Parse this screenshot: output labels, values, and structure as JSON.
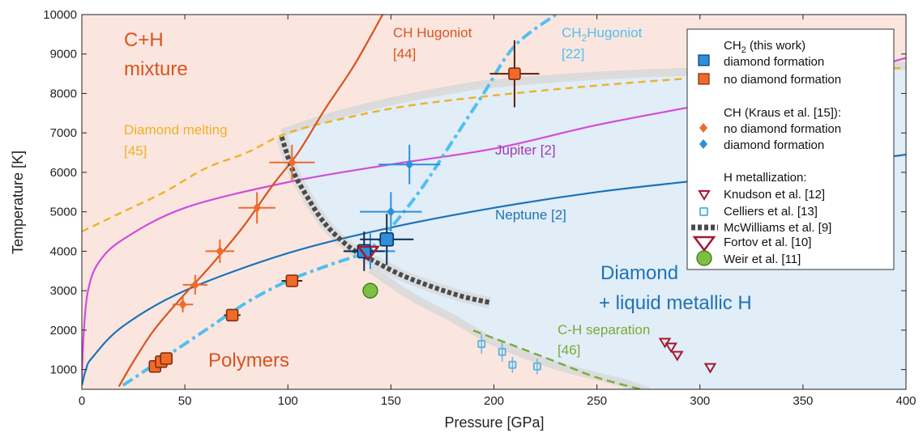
{
  "chart_data": {
    "type": "scatter",
    "xlabel": "Pressure [GPa]",
    "ylabel": "Temperature [K]",
    "xlim": [
      0,
      400
    ],
    "ylim": [
      500,
      10000
    ],
    "x_ticks": [
      "0",
      "50",
      "100",
      "150",
      "200",
      "250",
      "300",
      "350",
      "400"
    ],
    "y_ticks": [
      "1000",
      "2000",
      "3000",
      "4000",
      "5000",
      "6000",
      "7000",
      "8000",
      "9000",
      "10000"
    ],
    "region_labels": {
      "ch_mixture_1": "C+H",
      "ch_mixture_2": "mixture",
      "polymers": "Polymers",
      "diamond_1": "Diamond",
      "diamond_2": "+ liquid metallic H"
    },
    "curve_labels": {
      "ch_hugoniot_1": "CH Hugoniot",
      "ch_hugoniot_2": "[44]",
      "ch2_hugoniot_main": "CH",
      "ch2_hugoniot_sub": "2",
      "ch2_hugoniot_rest": "Hugoniot",
      "ch2_hugoniot_ref": "[22]",
      "diamond_melting_1": "Diamond melting",
      "diamond_melting_2": "[45]",
      "jupiter": "Jupiter [2]",
      "neptune": "Neptune [2]",
      "separation_1": "C-H separation",
      "separation_2": "[46]"
    },
    "legend": {
      "header_main": "CH",
      "header_sub": "2",
      "header_rest": " (this work)",
      "diamond_formation": "diamond formation",
      "no_diamond_formation": "no diamond formation",
      "kraus_header": "CH (Kraus et al. [15]):",
      "kraus_no": "no diamond formation",
      "kraus_yes": "diamond formation",
      "h_metal_header": "H metallization:",
      "knudson": "Knudson et al. [12]",
      "celliers": "Celliers et al. [13]",
      "mcwilliams": "McWilliams et al. [9]",
      "fortov": "Fortov et al. [10]",
      "weir": "Weir et al. [11]"
    },
    "colors": {
      "ch_region": "#fbe6df",
      "diamond_region": "#e1edf7",
      "ch_hugoniot": "#d9531e",
      "ch2_hugoniot": "#4fc0f0",
      "diamond_melting": "#efb125",
      "jupiter": "#d14dd9",
      "neptune": "#1c73b9",
      "separation": "#7aab35",
      "mcwilliams": "#4a4a4a",
      "knudson": "#a3192e",
      "celliers": "#5fb6e2",
      "weir": "#7bc043",
      "orange_marker": "#f06a2a",
      "blue_marker": "#2c8fde"
    },
    "series": {
      "ch_hugoniot": [
        [
          18,
          570
        ],
        [
          25,
          1200
        ],
        [
          35,
          2000
        ],
        [
          48,
          2800
        ],
        [
          62,
          3600
        ],
        [
          78,
          4600
        ],
        [
          93,
          5700
        ],
        [
          105,
          6500
        ],
        [
          118,
          7600
        ],
        [
          132,
          8700
        ],
        [
          146,
          10000
        ]
      ],
      "ch2_hugoniot": [
        [
          20,
          600
        ],
        [
          40,
          1300
        ],
        [
          60,
          2000
        ],
        [
          80,
          2700
        ],
        [
          100,
          3250
        ],
        [
          120,
          3650
        ],
        [
          138,
          4000
        ],
        [
          150,
          4600
        ],
        [
          165,
          5600
        ],
        [
          180,
          6800
        ],
        [
          195,
          8000
        ],
        [
          210,
          9200
        ],
        [
          230,
          10000
        ]
      ],
      "diamond_melting": [
        [
          0,
          4500
        ],
        [
          20,
          5000
        ],
        [
          40,
          5500
        ],
        [
          60,
          6100
        ],
        [
          80,
          6500
        ],
        [
          100,
          7000
        ],
        [
          130,
          7400
        ],
        [
          160,
          7700
        ],
        [
          200,
          7950
        ],
        [
          250,
          8200
        ],
        [
          300,
          8400
        ],
        [
          350,
          8550
        ],
        [
          400,
          8650
        ]
      ],
      "jupiter": [
        [
          0,
          800
        ],
        [
          1,
          2000
        ],
        [
          3,
          3000
        ],
        [
          8,
          3700
        ],
        [
          20,
          4300
        ],
        [
          50,
          5100
        ],
        [
          100,
          5750
        ],
        [
          150,
          6200
        ],
        [
          200,
          6600
        ],
        [
          250,
          7200
        ],
        [
          300,
          7700
        ],
        [
          350,
          8200
        ],
        [
          400,
          8900
        ]
      ],
      "neptune": [
        [
          0,
          600
        ],
        [
          2,
          1000
        ],
        [
          5,
          1300
        ],
        [
          20,
          2100
        ],
        [
          50,
          3000
        ],
        [
          100,
          3950
        ],
        [
          150,
          4600
        ],
        [
          200,
          5100
        ],
        [
          250,
          5500
        ],
        [
          300,
          5800
        ],
        [
          350,
          6100
        ],
        [
          400,
          6450
        ]
      ],
      "separation": [
        [
          190,
          1990
        ],
        [
          210,
          1600
        ],
        [
          230,
          1200
        ],
        [
          250,
          800
        ],
        [
          275,
          450
        ]
      ],
      "mcwilliams": [
        [
          97,
          6900
        ],
        [
          102,
          6100
        ],
        [
          108,
          5500
        ],
        [
          118,
          4700
        ],
        [
          130,
          4100
        ],
        [
          140,
          3800
        ],
        [
          155,
          3400
        ],
        [
          170,
          3100
        ],
        [
          185,
          2850
        ],
        [
          198,
          2700
        ]
      ],
      "diamond_boundary_upper": [
        [
          97,
          7000
        ],
        [
          120,
          7400
        ],
        [
          150,
          7800
        ],
        [
          180,
          8100
        ],
        [
          200,
          8250
        ],
        [
          250,
          8450
        ],
        [
          300,
          8560
        ],
        [
          350,
          8620
        ],
        [
          400,
          8700
        ]
      ],
      "diamond_boundary_lower": [
        [
          140,
          3550
        ],
        [
          160,
          2850
        ],
        [
          180,
          2300
        ],
        [
          200,
          1700
        ],
        [
          230,
          1100
        ],
        [
          260,
          700
        ],
        [
          275,
          450
        ]
      ]
    },
    "ch2_diamond": [
      {
        "x": 137,
        "y": 4000,
        "xerr": 10,
        "yerr": 500
      },
      {
        "x": 148,
        "y": 4300,
        "xerr": 13,
        "yerr": 650
      }
    ],
    "ch2_no_diamond": [
      {
        "x": 35.5,
        "y": 1080,
        "xerr": 2,
        "yerr": 120
      },
      {
        "x": 38.5,
        "y": 1200,
        "xerr": 2,
        "yerr": 120
      },
      {
        "x": 41,
        "y": 1280,
        "xerr": 2,
        "yerr": 120
      },
      {
        "x": 73,
        "y": 2380,
        "xerr": 4,
        "yerr": 150
      },
      {
        "x": 102,
        "y": 3250,
        "xerr": 5,
        "yerr": 150
      },
      {
        "x": 210,
        "y": 8500,
        "xerr": 12,
        "yerr": 850
      }
    ],
    "kraus_no_diamond": [
      {
        "x": 49,
        "y": 2650,
        "xerr": 5,
        "yerr": 200
      },
      {
        "x": 55,
        "y": 3150,
        "xerr": 6,
        "yerr": 250
      },
      {
        "x": 67,
        "y": 4000,
        "xerr": 7,
        "yerr": 300
      },
      {
        "x": 85,
        "y": 5100,
        "xerr": 9,
        "yerr": 400
      },
      {
        "x": 102,
        "y": 6250,
        "xerr": 11,
        "yerr": 450
      }
    ],
    "kraus_diamond": [
      {
        "x": 140,
        "y": 4000,
        "xerr": 12,
        "yerr": 450
      },
      {
        "x": 150,
        "y": 5000,
        "xerr": 15,
        "yerr": 500
      },
      {
        "x": 159,
        "y": 6200,
        "xerr": 15,
        "yerr": 500
      }
    ],
    "knudson": [
      [
        283,
        1680
      ],
      [
        286,
        1560
      ],
      [
        289,
        1350
      ],
      [
        305,
        1040
      ]
    ],
    "celliers": [
      {
        "x": 194,
        "y": 1650,
        "yerr": 250
      },
      {
        "x": 204,
        "y": 1450,
        "yerr": 250
      },
      {
        "x": 209,
        "y": 1120,
        "yerr": 200
      },
      {
        "x": 221,
        "y": 1080,
        "yerr": 200
      }
    ],
    "fortov": [
      {
        "x": 139,
        "y": 3950
      }
    ],
    "weir": [
      {
        "x": 140,
        "y": 3000,
        "yerr": 200
      }
    ]
  }
}
